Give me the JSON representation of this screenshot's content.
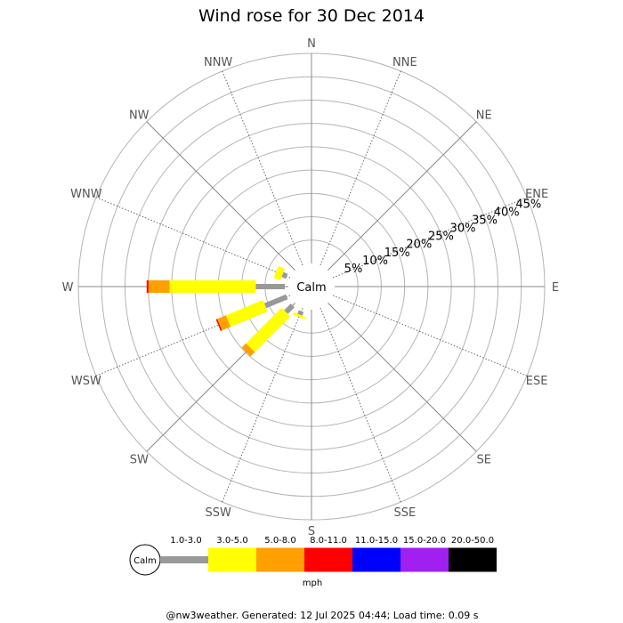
{
  "chart_data": {
    "type": "windrose",
    "title": "Wind rose for 30 Dec 2014",
    "center_label": "Calm",
    "directions": [
      "N",
      "NNE",
      "NE",
      "ENE",
      "E",
      "ESE",
      "SE",
      "SSE",
      "S",
      "SSW",
      "SW",
      "WSW",
      "W",
      "WNW",
      "NW",
      "NNW"
    ],
    "radial_ticks": [
      "5%",
      "10%",
      "15%",
      "20%",
      "25%",
      "30%",
      "35%",
      "40%",
      "45%"
    ],
    "radial_values": [
      5,
      10,
      15,
      20,
      25,
      30,
      35,
      40,
      45
    ],
    "radial_max": 45,
    "speed_bins": [
      {
        "label": "1.0-3.0",
        "color": "#999999"
      },
      {
        "label": "3.0-5.0",
        "color": "#ffff00"
      },
      {
        "label": "5.0-8.0",
        "color": "#ff9f00"
      },
      {
        "label": "8.0-11.0",
        "color": "#ff0000"
      },
      {
        "label": "11.0-15.0",
        "color": "#0000ff"
      },
      {
        "label": "15.0-20.0",
        "color": "#a020f0"
      },
      {
        "label": "20.0-50.0",
        "color": "#000000"
      }
    ],
    "unit": "mph",
    "series": [
      {
        "direction": "WNW",
        "values": [
          1.0,
          1.5,
          0,
          0,
          0,
          0,
          0
        ]
      },
      {
        "direction": "W",
        "values": [
          6.2,
          18.5,
          4.5,
          0.4,
          0,
          0,
          0
        ]
      },
      {
        "direction": "WSW",
        "values": [
          5.0,
          8.6,
          2.0,
          0.3,
          0,
          0,
          0
        ]
      },
      {
        "direction": "SW",
        "values": [
          2.0,
          10.8,
          1.3,
          0,
          0,
          0,
          0
        ]
      },
      {
        "direction": "SSW",
        "values": [
          0.8,
          0.5,
          0,
          0,
          0,
          0,
          0
        ]
      }
    ]
  },
  "footer": "@nw3weather. Generated: 12 Jul 2025 04:44; Load time: 0.09 s"
}
